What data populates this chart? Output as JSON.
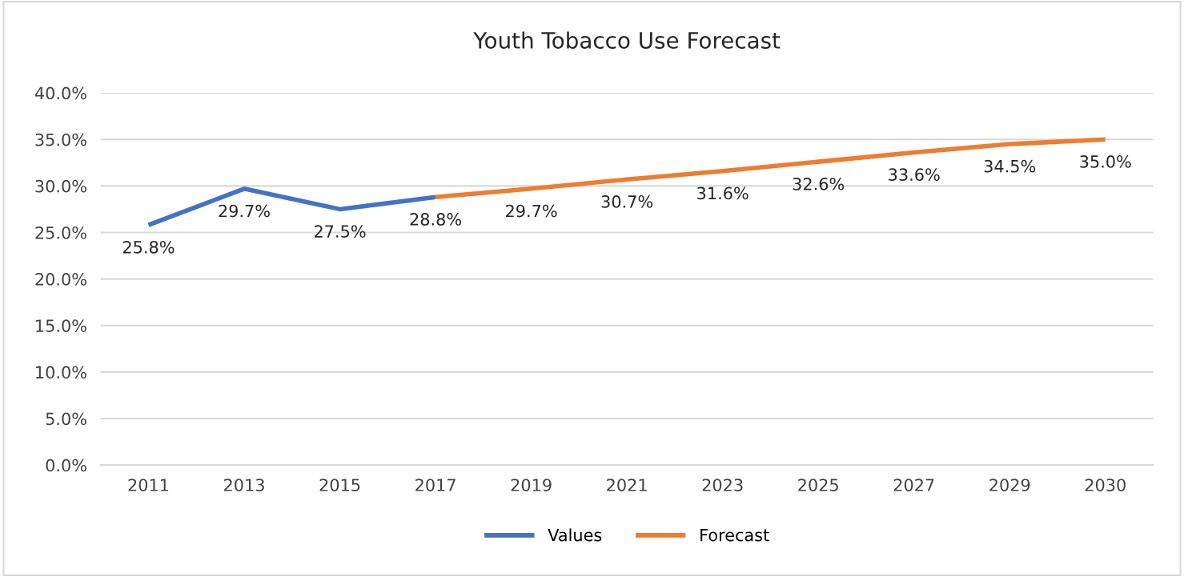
{
  "chart_data": {
    "type": "line",
    "title": "Youth Tobacco Use Forecast",
    "categories": [
      "2011",
      "2013",
      "2015",
      "2017",
      "2019",
      "2021",
      "2023",
      "2025",
      "2027",
      "2029",
      "2030"
    ],
    "series": [
      {
        "name": "Values",
        "color": "#4472c4",
        "values": [
          25.8,
          29.7,
          27.5,
          28.8,
          null,
          null,
          null,
          null,
          null,
          null,
          null
        ],
        "value_labels": [
          "25.8%",
          "29.7%",
          "27.5%",
          "28.8%",
          null,
          null,
          null,
          null,
          null,
          null,
          null
        ]
      },
      {
        "name": "Forecast",
        "color": "#ed7d31",
        "values": [
          null,
          null,
          null,
          28.8,
          29.7,
          30.7,
          31.6,
          32.6,
          33.6,
          34.5,
          35.0
        ],
        "value_labels": [
          null,
          null,
          null,
          null,
          "29.7%",
          "30.7%",
          "31.6%",
          "32.6%",
          "33.6%",
          "34.5%",
          "35.0%"
        ]
      }
    ],
    "ylim": [
      0,
      40
    ],
    "yticks": [
      {
        "value": 0,
        "label": "0.0%"
      },
      {
        "value": 5,
        "label": "5.0%"
      },
      {
        "value": 10,
        "label": "10.0%"
      },
      {
        "value": 15,
        "label": "15.0%"
      },
      {
        "value": 20,
        "label": "20.0%"
      },
      {
        "value": 25,
        "label": "25.0%"
      },
      {
        "value": 30,
        "label": "30.0%"
      },
      {
        "value": 35,
        "label": "35.0%"
      },
      {
        "value": 40,
        "label": "40.0%"
      }
    ],
    "grid": "y",
    "legend": "bottom",
    "marker": "none",
    "line_style": "solid"
  }
}
